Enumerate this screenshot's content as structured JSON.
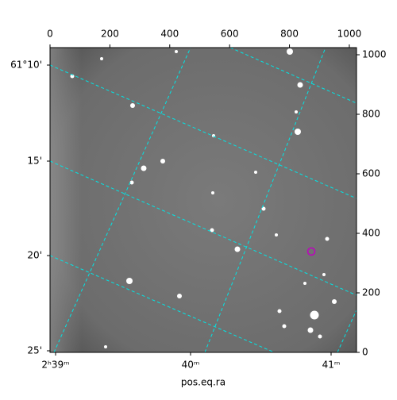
{
  "chart_data": {
    "type": "image",
    "xlabel": "pos.eq.ra",
    "xlim": [
      0,
      1024
    ],
    "ylim": [
      0,
      1024
    ],
    "xticks": [
      0,
      200,
      400,
      600,
      800,
      1000
    ],
    "yticks": [
      0,
      200,
      400,
      600,
      800,
      1000
    ],
    "ra_labels": [
      "2ʰ39ᵐ",
      "40ᵐ",
      "41ᵐ"
    ],
    "dec_labels": [
      "61°10'",
      "15'",
      "20'",
      "25'"
    ],
    "markers": {
      "x": [
        873
      ],
      "y": [
        339
      ],
      "color": "#c000c0"
    },
    "grid_color": "#00e5e5"
  }
}
